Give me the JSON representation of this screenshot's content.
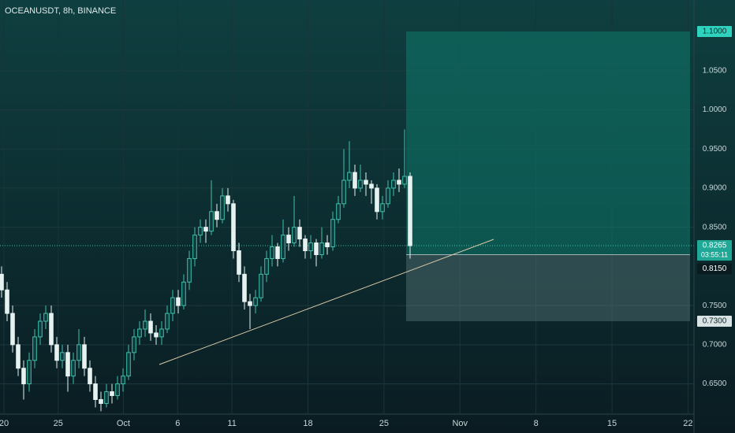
{
  "chart_data": {
    "type": "candlestick",
    "title": "OCEANUSDT, 8h, BINANCE",
    "up_color": "#3fc1ad",
    "down_color": "#e6f2f0",
    "candles": [
      [
        0.79,
        0.8,
        0.76,
        0.77
      ],
      [
        0.77,
        0.78,
        0.73,
        0.74
      ],
      [
        0.74,
        0.75,
        0.69,
        0.7
      ],
      [
        0.7,
        0.71,
        0.66,
        0.67
      ],
      [
        0.67,
        0.68,
        0.63,
        0.65
      ],
      [
        0.65,
        0.69,
        0.64,
        0.68
      ],
      [
        0.68,
        0.72,
        0.67,
        0.71
      ],
      [
        0.71,
        0.74,
        0.7,
        0.73
      ],
      [
        0.73,
        0.75,
        0.72,
        0.74
      ],
      [
        0.74,
        0.75,
        0.69,
        0.7
      ],
      [
        0.7,
        0.71,
        0.67,
        0.68
      ],
      [
        0.68,
        0.7,
        0.67,
        0.69
      ],
      [
        0.69,
        0.7,
        0.64,
        0.66
      ],
      [
        0.66,
        0.69,
        0.65,
        0.68
      ],
      [
        0.68,
        0.72,
        0.67,
        0.7
      ],
      [
        0.7,
        0.71,
        0.66,
        0.67
      ],
      [
        0.67,
        0.68,
        0.64,
        0.65
      ],
      [
        0.65,
        0.66,
        0.62,
        0.63
      ],
      [
        0.63,
        0.64,
        0.615,
        0.625
      ],
      [
        0.625,
        0.65,
        0.62,
        0.64
      ],
      [
        0.64,
        0.65,
        0.625,
        0.635
      ],
      [
        0.635,
        0.66,
        0.63,
        0.65
      ],
      [
        0.65,
        0.67,
        0.64,
        0.66
      ],
      [
        0.66,
        0.7,
        0.655,
        0.69
      ],
      [
        0.69,
        0.72,
        0.68,
        0.71
      ],
      [
        0.71,
        0.73,
        0.7,
        0.72
      ],
      [
        0.72,
        0.745,
        0.71,
        0.73
      ],
      [
        0.73,
        0.74,
        0.705,
        0.715
      ],
      [
        0.715,
        0.725,
        0.7,
        0.71
      ],
      [
        0.71,
        0.73,
        0.7,
        0.72
      ],
      [
        0.72,
        0.75,
        0.715,
        0.74
      ],
      [
        0.74,
        0.77,
        0.73,
        0.76
      ],
      [
        0.76,
        0.77,
        0.74,
        0.75
      ],
      [
        0.75,
        0.79,
        0.745,
        0.78
      ],
      [
        0.78,
        0.82,
        0.77,
        0.81
      ],
      [
        0.81,
        0.85,
        0.8,
        0.84
      ],
      [
        0.84,
        0.86,
        0.83,
        0.85
      ],
      [
        0.85,
        0.86,
        0.83,
        0.845
      ],
      [
        0.845,
        0.91,
        0.84,
        0.87
      ],
      [
        0.87,
        0.88,
        0.85,
        0.86
      ],
      [
        0.86,
        0.9,
        0.855,
        0.89
      ],
      [
        0.89,
        0.9,
        0.87,
        0.88
      ],
      [
        0.88,
        0.885,
        0.81,
        0.82
      ],
      [
        0.82,
        0.83,
        0.78,
        0.79
      ],
      [
        0.79,
        0.8,
        0.745,
        0.755
      ],
      [
        0.755,
        0.765,
        0.72,
        0.75
      ],
      [
        0.75,
        0.77,
        0.74,
        0.76
      ],
      [
        0.76,
        0.8,
        0.755,
        0.79
      ],
      [
        0.79,
        0.82,
        0.78,
        0.81
      ],
      [
        0.81,
        0.84,
        0.8,
        0.825
      ],
      [
        0.825,
        0.83,
        0.8,
        0.81
      ],
      [
        0.81,
        0.86,
        0.805,
        0.84
      ],
      [
        0.84,
        0.85,
        0.82,
        0.83
      ],
      [
        0.83,
        0.89,
        0.825,
        0.85
      ],
      [
        0.85,
        0.86,
        0.825,
        0.835
      ],
      [
        0.835,
        0.84,
        0.81,
        0.82
      ],
      [
        0.82,
        0.84,
        0.81,
        0.83
      ],
      [
        0.83,
        0.835,
        0.8,
        0.815
      ],
      [
        0.815,
        0.85,
        0.81,
        0.83
      ],
      [
        0.83,
        0.84,
        0.815,
        0.825
      ],
      [
        0.825,
        0.87,
        0.82,
        0.86
      ],
      [
        0.86,
        0.89,
        0.855,
        0.88
      ],
      [
        0.88,
        0.95,
        0.875,
        0.91
      ],
      [
        0.91,
        0.96,
        0.9,
        0.92
      ],
      [
        0.92,
        0.93,
        0.89,
        0.9
      ],
      [
        0.9,
        0.93,
        0.895,
        0.91
      ],
      [
        0.91,
        0.92,
        0.89,
        0.905
      ],
      [
        0.905,
        0.91,
        0.88,
        0.9
      ],
      [
        0.9,
        0.905,
        0.86,
        0.87
      ],
      [
        0.87,
        0.89,
        0.86,
        0.88
      ],
      [
        0.88,
        0.91,
        0.875,
        0.9
      ],
      [
        0.9,
        0.92,
        0.89,
        0.91
      ],
      [
        0.91,
        0.925,
        0.895,
        0.905
      ],
      [
        0.905,
        0.975,
        0.9,
        0.915
      ],
      [
        0.915,
        0.92,
        0.81,
        0.8265
      ]
    ],
    "ylim": [
      0.6124,
      1.1402
    ],
    "yticks": [
      {
        "value": 1.05,
        "label": "1.0500"
      },
      {
        "value": 1.0,
        "label": "1.0000"
      },
      {
        "value": 0.95,
        "label": "0.9500"
      },
      {
        "value": 0.9,
        "label": "0.9000"
      },
      {
        "value": 0.85,
        "label": "0.8500"
      },
      {
        "value": 0.75,
        "label": "0.7500"
      },
      {
        "value": 0.7,
        "label": "0.7000"
      },
      {
        "value": 0.65,
        "label": "0.6500"
      }
    ],
    "xlim": [
      -0.36,
      63.55
    ],
    "xticks": [
      {
        "value": 0,
        "label": "20"
      },
      {
        "value": 5,
        "label": "25"
      },
      {
        "value": 11,
        "label": "Oct"
      },
      {
        "value": 16,
        "label": "6"
      },
      {
        "value": 21,
        "label": "11"
      },
      {
        "value": 28,
        "label": "18"
      },
      {
        "value": 35,
        "label": "25"
      },
      {
        "value": 42,
        "label": "Nov"
      },
      {
        "value": 49,
        "label": "8"
      },
      {
        "value": 56,
        "label": "15"
      },
      {
        "value": 63,
        "label": "22"
      }
    ],
    "position": {
      "target": {
        "value": 1.1,
        "label": "1.1000"
      },
      "entry": {
        "value": 0.815,
        "label": "0.8150"
      },
      "stop": {
        "value": 0.73,
        "label": "0.7300"
      }
    },
    "last_price": {
      "value": 0.8265,
      "label": "0.8265"
    },
    "countdown": "03:55:11"
  }
}
